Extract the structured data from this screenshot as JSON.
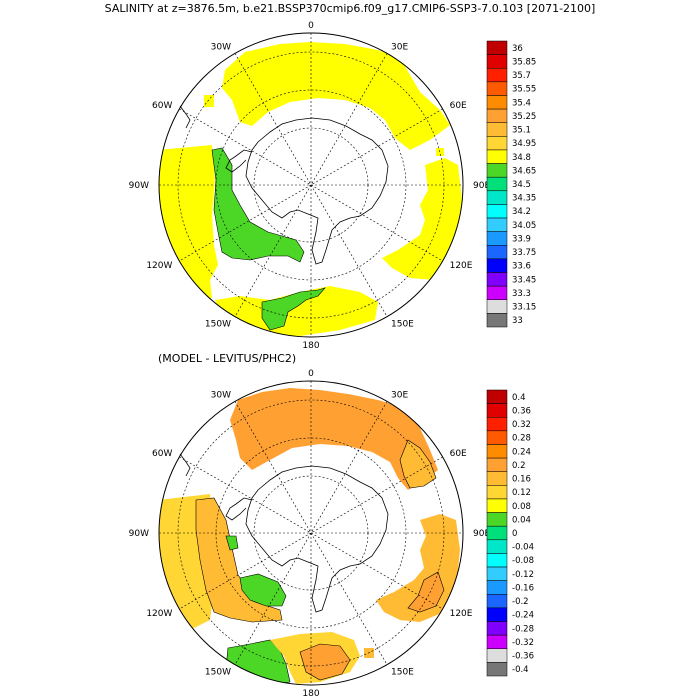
{
  "panel1": {
    "title": "SALINITY at z=3876.5m, b.e21.BSSP370cmip6.f09_g17.CMIP6-SSP3-7.0.103 [2071-2100]",
    "lon_labels": [
      "0",
      "30E",
      "60E",
      "90E",
      "120E",
      "150E",
      "180",
      "150W",
      "120W",
      "90W",
      "60W",
      "30W"
    ],
    "colorbar": {
      "labels": [
        "36",
        "35.85",
        "35.7",
        "35.55",
        "35.4",
        "35.25",
        "35.1",
        "34.95",
        "34.8",
        "34.65",
        "34.5",
        "34.35",
        "34.2",
        "34.05",
        "33.9",
        "33.75",
        "33.6",
        "33.45",
        "33.3",
        "33.15",
        "33"
      ],
      "colors": [
        "#c00000",
        "#e00000",
        "#ff2000",
        "#ff5a00",
        "#ff8c00",
        "#ffa033",
        "#ffbb33",
        "#ffd633",
        "#ffff00",
        "#4cd626",
        "#00e07a",
        "#00e6c8",
        "#00ffff",
        "#33ccff",
        "#1a99ff",
        "#1a66ff",
        "#0000ff",
        "#8000ff",
        "#cc00ff",
        "#dddddd",
        "#777777"
      ]
    }
  },
  "panel2": {
    "title": "(MODEL - LEVITUS/PHC2)",
    "lon_labels": [
      "0",
      "30E",
      "60E",
      "90E",
      "120E",
      "150E",
      "180",
      "150W",
      "120W",
      "90W",
      "60W",
      "30W"
    ],
    "colorbar": {
      "labels": [
        "0.4",
        "0.36",
        "0.32",
        "0.28",
        "0.24",
        "0.2",
        "0.16",
        "0.12",
        "0.08",
        "0.04",
        "0",
        "-0.04",
        "-0.08",
        "-0.12",
        "-0.16",
        "-0.2",
        "-0.24",
        "-0.28",
        "-0.32",
        "-0.36",
        "-0.4"
      ],
      "colors": [
        "#c00000",
        "#e00000",
        "#ff2000",
        "#ff5a00",
        "#ff8c00",
        "#ffa033",
        "#ffbb33",
        "#ffd633",
        "#ffff00",
        "#4cd626",
        "#00e07a",
        "#00e6c8",
        "#00ffff",
        "#33ccff",
        "#1a99ff",
        "#1a66ff",
        "#0000ff",
        "#8000ff",
        "#cc00ff",
        "#dddddd",
        "#777777"
      ]
    }
  },
  "colors": {
    "yellow": "#ffff00",
    "green": "#4cd626",
    "orange": "#ffa033",
    "light_orange": "#ffbb33",
    "gold": "#ffd633"
  }
}
